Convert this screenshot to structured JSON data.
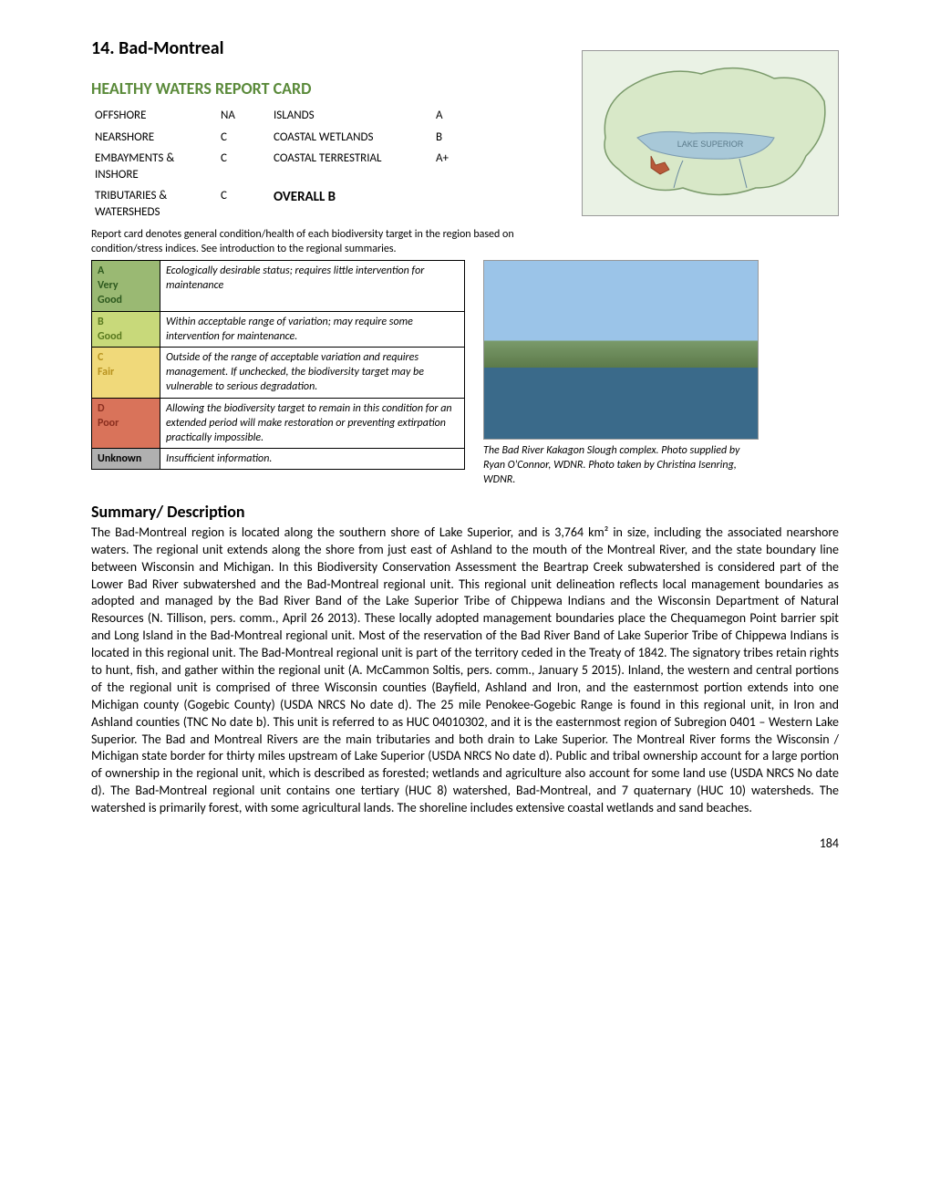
{
  "title": "14. Bad-Montreal",
  "report_card": {
    "heading": "HEALTHY WATERS REPORT CARD",
    "heading_color": "#5a8a3a",
    "rows": [
      {
        "l_label": "OFFSHORE",
        "l_grade": "NA",
        "r_label": "ISLANDS",
        "r_grade": "A"
      },
      {
        "l_label": "NEARSHORE",
        "l_grade": "C",
        "r_label": "COASTAL WETLANDS",
        "r_grade": "B"
      },
      {
        "l_label": "EMBAYMENTS & INSHORE",
        "l_grade": "C",
        "r_label": "COASTAL TERRESTRIAL",
        "r_grade": "A+"
      },
      {
        "l_label": "TRIBUTARIES & WATERSHEDS",
        "l_grade": "C",
        "r_label_bold": "OVERALL  B",
        "r_grade": ""
      }
    ],
    "caption": "Report card denotes general condition/health of each biodiversity target in the region based on condition/stress indices.  See introduction to the regional summaries."
  },
  "map_label": "LAKE SUPERIOR",
  "legend": [
    {
      "label_lines": [
        "A",
        "Very",
        "Good"
      ],
      "bg": "#9ab973",
      "color": "#2e5a1f",
      "desc": "Ecologically desirable status; requires little intervention for maintenance"
    },
    {
      "label_lines": [
        "B",
        "Good"
      ],
      "bg": "#c8d97a",
      "color": "#5a7a1f",
      "desc": "Within acceptable range of variation; may require some intervention for maintenance."
    },
    {
      "label_lines": [
        "C",
        "Fair"
      ],
      "bg": "#f0d97a",
      "color": "#b8931f",
      "desc": "Outside of the range of acceptable variation and requires management.  If unchecked, the biodiversity target may be vulnerable to serious degradation."
    },
    {
      "label_lines": [
        "D",
        "Poor"
      ],
      "bg": "#d9735a",
      "color": "#8a2e1f",
      "desc": "Allowing the biodiversity target to remain in this condition for an extended period will make restoration or preventing extirpation practically impossible."
    },
    {
      "label_lines": [
        "Unknown"
      ],
      "bg": "#b0b0b0",
      "color": "#000",
      "desc": "Insufficient information."
    }
  ],
  "summary_heading": "Summary/ Description",
  "photo_caption": "The Bad River Kakagon Slough complex. Photo supplied by Ryan O'Connor, WDNR. Photo taken by Christina Isenring, WDNR.",
  "summary_intro": "The Bad-Montreal region is located along the southern shore of Lake Superior, and is 3,764 km² in size, including ",
  "summary_body": "the associated nearshore waters.  The regional unit extends along the shore from just east of Ashland to the mouth of the Montreal River, and the state boundary line between Wisconsin and Michigan.  In this Biodiversity Conservation Assessment the Beartrap Creek subwatershed is considered part of the Lower Bad River subwatershed and the Bad-Montreal regional unit.  This regional unit delineation reflects local management boundaries as adopted and managed by the Bad River Band of the Lake Superior Tribe of Chippewa Indians and the Wisconsin Department of Natural Resources (N. Tillison, pers. comm., April 26 2013).  These locally adopted management boundaries place the Chequamegon Point barrier spit and Long Island in the Bad-Montreal regional unit.  Most of the reservation of the Bad River Band of Lake Superior Tribe of Chippewa Indians is located in this regional unit.  The Bad-Montreal regional unit is part of the territory ceded in the Treaty of 1842. The signatory tribes retain rights to hunt, fish, and gather within the regional unit (A. McCammon Soltis, pers. comm., January 5 2015).  Inland, the western and central portions of the regional unit is comprised of three Wisconsin counties (Bayfield, Ashland and Iron, and the easternmost portion extends into one Michigan county (Gogebic County) (USDA NRCS No date d).  The 25 mile Penokee-Gogebic Range is found in this regional unit, in Iron and Ashland counties (TNC No date b).  This unit is referred to as HUC 04010302, and it is the easternmost region of Subregion 0401 – Western Lake Superior.  The Bad and Montreal Rivers are the main tributaries and both drain to Lake Superior.  The Montreal River forms the Wisconsin / Michigan state border for thirty miles upstream of Lake Superior (USDA NRCS No date d).  Public and tribal ownership account for a large portion of ownership in the regional unit, which is described as forested; wetlands and agriculture also account for some land use (USDA NRCS No date d).  The Bad-Montreal regional unit contains one tertiary (HUC 8) watershed, Bad-Montreal, and 7 quaternary (HUC 10) watersheds.  The watershed is primarily forest, with some agricultural lands. The shoreline includes extensive coastal wetlands and sand beaches.",
  "page_number": "184"
}
